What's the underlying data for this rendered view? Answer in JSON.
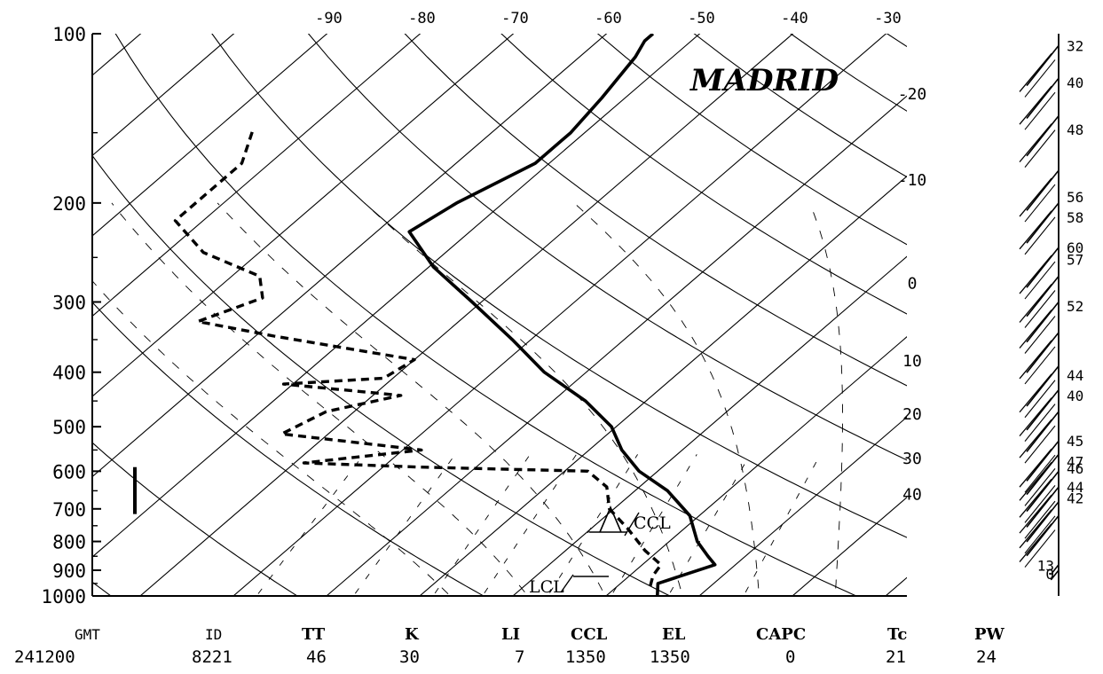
{
  "chart_data": {
    "type": "skew-t",
    "title": "MADRID",
    "pressure_ticks": [
      "100",
      "200",
      "300",
      "400",
      "500",
      "600",
      "700",
      "800",
      "900",
      "1000"
    ],
    "top_temp_ticks": [
      "-90",
      "-80",
      "-70",
      "-60",
      "-50",
      "-40",
      "-30"
    ],
    "right_temp_ticks": [
      "-20",
      "-10",
      "0",
      "10",
      "20",
      "30",
      "40"
    ],
    "temperature_profile": [
      {
        "p": 1000,
        "t": 15.5
      },
      {
        "p": 950,
        "t": 14.0
      },
      {
        "p": 880,
        "t": 17.8
      },
      {
        "p": 850,
        "t": 16.0
      },
      {
        "p": 800,
        "t": 13.0
      },
      {
        "p": 720,
        "t": 9.0
      },
      {
        "p": 650,
        "t": 3.5
      },
      {
        "p": 600,
        "t": -2.0
      },
      {
        "p": 550,
        "t": -6.5
      },
      {
        "p": 500,
        "t": -10.5
      },
      {
        "p": 450,
        "t": -16.5
      },
      {
        "p": 400,
        "t": -24.5
      },
      {
        "p": 350,
        "t": -32.0
      },
      {
        "p": 300,
        "t": -41.0
      },
      {
        "p": 260,
        "t": -49.5
      },
      {
        "p": 225,
        "t": -56.5
      },
      {
        "p": 200,
        "t": -55.0
      },
      {
        "p": 170,
        "t": -51.5
      },
      {
        "p": 150,
        "t": -51.5
      },
      {
        "p": 130,
        "t": -52.5
      },
      {
        "p": 110,
        "t": -54.0
      },
      {
        "p": 103,
        "t": -55.0
      },
      {
        "p": 100,
        "t": -55.0
      }
    ],
    "dewpoint_profile": [
      {
        "p": 960,
        "t": 13.5
      },
      {
        "p": 920,
        "t": 12.5
      },
      {
        "p": 880,
        "t": 12.0
      },
      {
        "p": 830,
        "t": 8.5
      },
      {
        "p": 760,
        "t": 4.0
      },
      {
        "p": 700,
        "t": -0.5
      },
      {
        "p": 640,
        "t": -3.5
      },
      {
        "p": 600,
        "t": -7.5
      },
      {
        "p": 590,
        "t": -26.0
      },
      {
        "p": 580,
        "t": -39.0
      },
      {
        "p": 550,
        "t": -28.0
      },
      {
        "p": 515,
        "t": -45.0
      },
      {
        "p": 470,
        "t": -43.0
      },
      {
        "p": 440,
        "t": -37.0
      },
      {
        "p": 420,
        "t": -51.0
      },
      {
        "p": 410,
        "t": -41.0
      },
      {
        "p": 380,
        "t": -40.0
      },
      {
        "p": 345,
        "t": -58.0
      },
      {
        "p": 325,
        "t": -68.0
      },
      {
        "p": 295,
        "t": -64.0
      },
      {
        "p": 270,
        "t": -67.0
      },
      {
        "p": 245,
        "t": -76.0
      },
      {
        "p": 215,
        "t": -83.0
      },
      {
        "p": 170,
        "t": -83.0
      },
      {
        "p": 148,
        "t": -86.0
      }
    ],
    "wind": {
      "levels_hpa": [
        105,
        120,
        140,
        175,
        200,
        240,
        270,
        300,
        340,
        390,
        430,
        470,
        530,
        560,
        600,
        640,
        680,
        720,
        880,
        900
      ],
      "speed_labels": [
        {
          "text": "32",
          "p": 105
        },
        {
          "text": "40",
          "p": 122
        },
        {
          "text": "48",
          "p": 148
        },
        {
          "text": "56",
          "p": 195
        },
        {
          "text": "58",
          "p": 212
        },
        {
          "text": "60",
          "p": 240
        },
        {
          "text": "57",
          "p": 252
        },
        {
          "text": "52",
          "p": 305
        },
        {
          "text": "44",
          "p": 405
        },
        {
          "text": "40",
          "p": 440
        },
        {
          "text": "45",
          "p": 530
        },
        {
          "text": "47",
          "p": 577
        },
        {
          "text": "46",
          "p": 593
        },
        {
          "text": "44",
          "p": 640
        },
        {
          "text": "42",
          "p": 670
        },
        {
          "text": "13",
          "p": 882
        },
        {
          "text": "0",
          "p": 913
        }
      ]
    },
    "parcel_labels": {
      "ccl": "CCL",
      "lcl": "LCL"
    },
    "summary": {
      "headers": [
        "GMT",
        "ID",
        "TT",
        "K",
        "LI",
        "CCL",
        "EL",
        "CAPC",
        "Tc",
        "PW"
      ],
      "values": [
        "241200",
        "8221",
        "46",
        "30",
        "7",
        "1350",
        "1350",
        "0",
        "21",
        "24"
      ]
    },
    "grid": true
  }
}
